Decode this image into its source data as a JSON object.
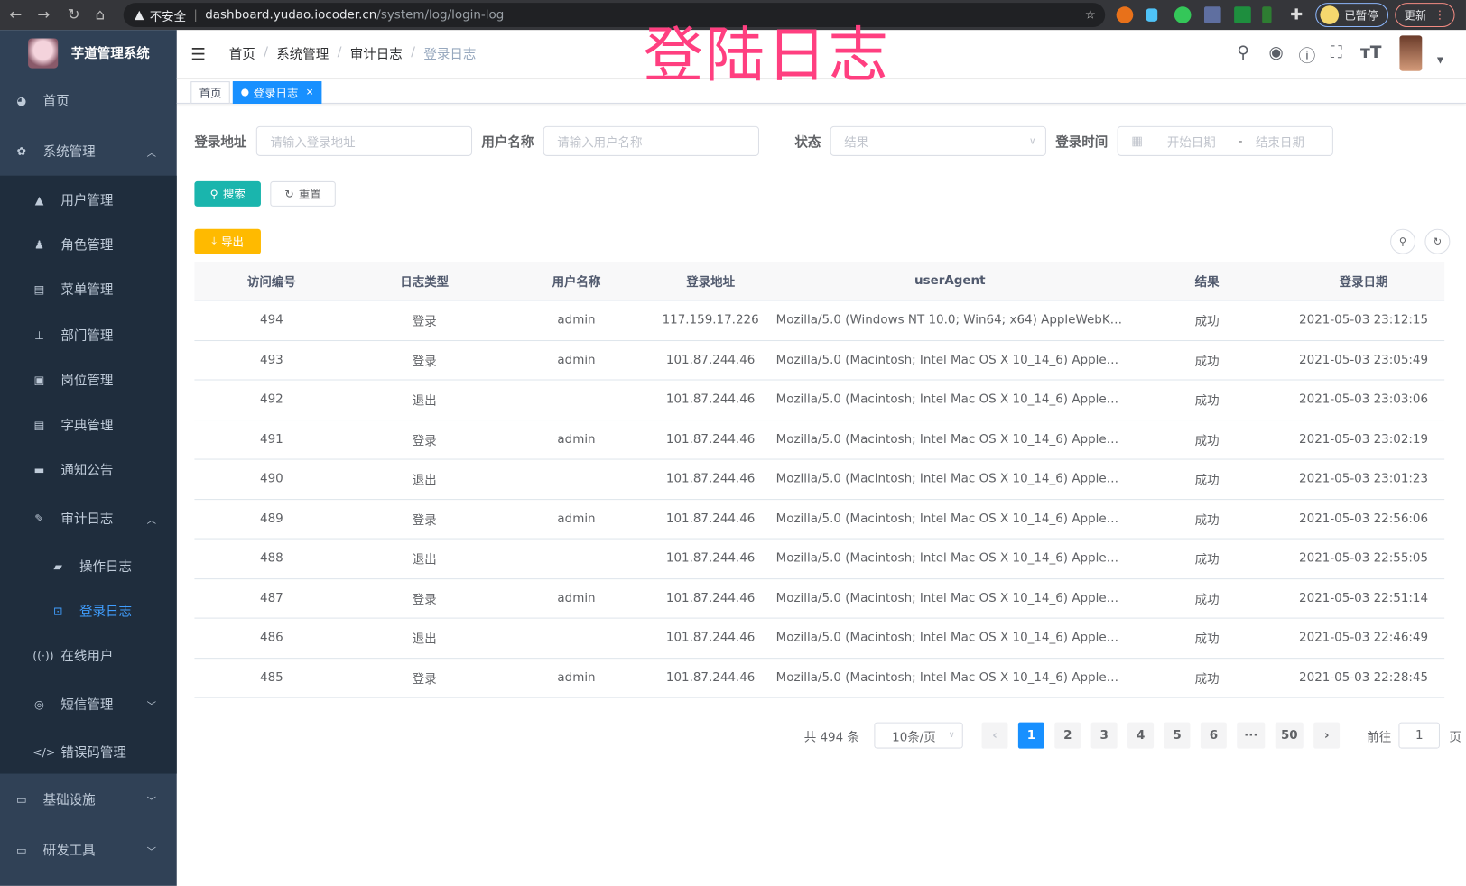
{
  "browser": {
    "security_label": "不安全",
    "url_host": "dashboard.yudao.iocoder.cn",
    "url_path": "/system/log/login-log",
    "profile_label": "已暂停",
    "update_label": "更新"
  },
  "overlay_title": "登陆日志",
  "sidebar": {
    "app_title": "芋道管理系统",
    "items": [
      {
        "label": "首页",
        "icon": "dashboard-icon"
      },
      {
        "label": "系统管理",
        "icon": "gear-icon",
        "expanded": true
      },
      {
        "label": "用户管理",
        "icon": "user-icon"
      },
      {
        "label": "角色管理",
        "icon": "peoples-icon"
      },
      {
        "label": "菜单管理",
        "icon": "tree-table-icon"
      },
      {
        "label": "部门管理",
        "icon": "tree-icon"
      },
      {
        "label": "岗位管理",
        "icon": "post-icon"
      },
      {
        "label": "字典管理",
        "icon": "dict-icon"
      },
      {
        "label": "通知公告",
        "icon": "message-icon"
      },
      {
        "label": "审计日志",
        "icon": "form-icon",
        "expanded": true
      },
      {
        "label": "操作日志",
        "icon": "log-icon"
      },
      {
        "label": "登录日志",
        "icon": "logininfor-icon",
        "active": true
      },
      {
        "label": "在线用户",
        "icon": "online-icon"
      },
      {
        "label": "短信管理",
        "icon": "validcode-icon"
      },
      {
        "label": "错误码管理",
        "icon": "code-icon"
      },
      {
        "label": "基础设施",
        "icon": "monitor-icon"
      },
      {
        "label": "研发工具",
        "icon": "tool-icon"
      }
    ]
  },
  "breadcrumb": [
    "首页",
    "系统管理",
    "审计日志",
    "登录日志"
  ],
  "tags": [
    {
      "label": "首页"
    },
    {
      "label": "登录日志",
      "active": true
    }
  ],
  "filters": {
    "ip_label": "登录地址",
    "ip_placeholder": "请输入登录地址",
    "user_label": "用户名称",
    "user_placeholder": "请输入用户名称",
    "status_label": "状态",
    "status_placeholder": "结果",
    "time_label": "登录时间",
    "start_placeholder": "开始日期",
    "range_sep": "-",
    "end_placeholder": "结束日期"
  },
  "buttons": {
    "search": "搜索",
    "reset": "重置",
    "export": "导出"
  },
  "table": {
    "columns": [
      "访问编号",
      "日志类型",
      "用户名称",
      "登录地址",
      "userAgent",
      "结果",
      "登录日期"
    ],
    "rows": [
      [
        "494",
        "登录",
        "admin",
        "117.159.17.226",
        "Mozilla/5.0 (Windows NT 10.0; Win64; x64) AppleWebKit...",
        "成功",
        "2021-05-03 23:12:15"
      ],
      [
        "493",
        "登录",
        "admin",
        "101.87.244.46",
        "Mozilla/5.0 (Macintosh; Intel Mac OS X 10_14_6) AppleWe...",
        "成功",
        "2021-05-03 23:05:49"
      ],
      [
        "492",
        "退出",
        "",
        "101.87.244.46",
        "Mozilla/5.0 (Macintosh; Intel Mac OS X 10_14_6) AppleWe...",
        "成功",
        "2021-05-03 23:03:06"
      ],
      [
        "491",
        "登录",
        "admin",
        "101.87.244.46",
        "Mozilla/5.0 (Macintosh; Intel Mac OS X 10_14_6) AppleWe...",
        "成功",
        "2021-05-03 23:02:19"
      ],
      [
        "490",
        "退出",
        "",
        "101.87.244.46",
        "Mozilla/5.0 (Macintosh; Intel Mac OS X 10_14_6) AppleWe...",
        "成功",
        "2021-05-03 23:01:23"
      ],
      [
        "489",
        "登录",
        "admin",
        "101.87.244.46",
        "Mozilla/5.0 (Macintosh; Intel Mac OS X 10_14_6) AppleWe...",
        "成功",
        "2021-05-03 22:56:06"
      ],
      [
        "488",
        "退出",
        "",
        "101.87.244.46",
        "Mozilla/5.0 (Macintosh; Intel Mac OS X 10_14_6) AppleWe...",
        "成功",
        "2021-05-03 22:55:05"
      ],
      [
        "487",
        "登录",
        "admin",
        "101.87.244.46",
        "Mozilla/5.0 (Macintosh; Intel Mac OS X 10_14_6) AppleWe...",
        "成功",
        "2021-05-03 22:51:14"
      ],
      [
        "486",
        "退出",
        "",
        "101.87.244.46",
        "Mozilla/5.0 (Macintosh; Intel Mac OS X 10_14_6) AppleWe...",
        "成功",
        "2021-05-03 22:46:49"
      ],
      [
        "485",
        "登录",
        "admin",
        "101.87.244.46",
        "Mozilla/5.0 (Macintosh; Intel Mac OS X 10_14_6) AppleWe...",
        "成功",
        "2021-05-03 22:28:45"
      ]
    ]
  },
  "pagination": {
    "total_text": "共 494 条",
    "page_size": "10条/页",
    "pages": [
      "1",
      "2",
      "3",
      "4",
      "5",
      "6",
      "···",
      "50"
    ],
    "current": "1",
    "goto_label": "前往",
    "goto_value": "1",
    "goto_suffix": "页"
  },
  "colors": {
    "sidebar": "#304156",
    "submenu": "#1f2d3d",
    "primary": "#1890ff",
    "search": "#1ab5ad",
    "export": "#ffba00",
    "overlay": "#ff3f80"
  }
}
